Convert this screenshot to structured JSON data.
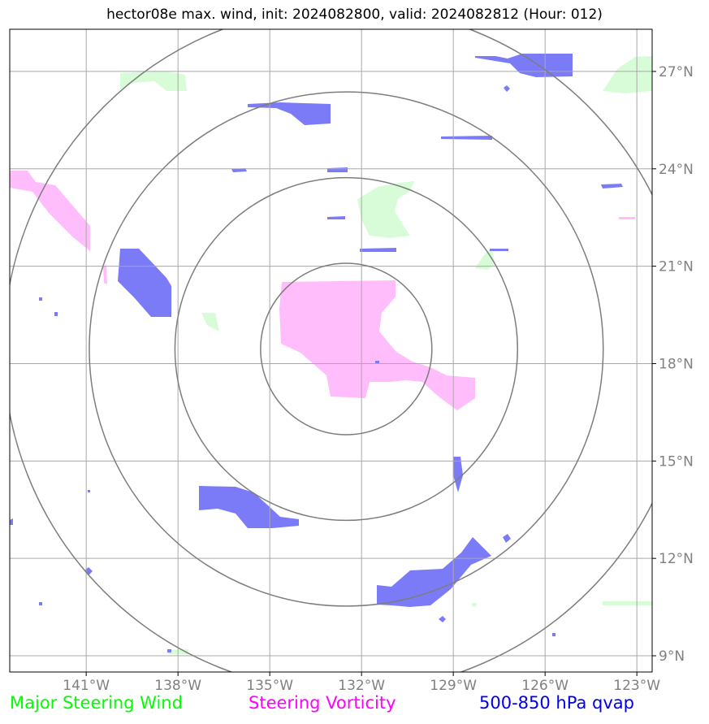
{
  "title": "hector08e max. wind, init: 2024082800, valid: 2024082812 (Hour: 012)",
  "map": {
    "lon_range": [
      -143.5,
      -122.5
    ],
    "lat_range": [
      8.5,
      28.3
    ],
    "lon_ticks": [
      {
        "value": -141,
        "label": "141°W"
      },
      {
        "value": -138,
        "label": "138°W"
      },
      {
        "value": -135,
        "label": "135°W"
      },
      {
        "value": -132,
        "label": "132°W"
      },
      {
        "value": -129,
        "label": "129°W"
      },
      {
        "value": -126,
        "label": "126°W"
      },
      {
        "value": -123,
        "label": "123°W"
      }
    ],
    "lat_ticks": [
      {
        "value": 9,
        "label": "9°N"
      },
      {
        "value": 12,
        "label": "12°N"
      },
      {
        "value": 15,
        "label": "15°N"
      },
      {
        "value": 18,
        "label": "18°N"
      },
      {
        "value": 21,
        "label": "21°N"
      },
      {
        "value": 24,
        "label": "24°N"
      },
      {
        "value": 27,
        "label": "27°N"
      }
    ],
    "grid": true,
    "range_rings": {
      "center": {
        "lon": -132.5,
        "lat": 18.45
      },
      "radii_deg": [
        2.8,
        5.6,
        8.4,
        11.2
      ]
    },
    "colors": {
      "major_steering_wind": "#d8fcd8",
      "steering_vorticity": "#ffbdfb",
      "qvap": "#7b7bf8",
      "grid": "#a8a8a8",
      "rings": "#7d7d7d"
    }
  },
  "legend": {
    "wind": {
      "label": "Major Steering Wind",
      "color": "#00ff00"
    },
    "vorticity": {
      "label": "Steering Vorticity",
      "color": "#ff00ff"
    },
    "qvap": {
      "label": "500-850 hPa qvap",
      "color": "#0000ee"
    }
  }
}
